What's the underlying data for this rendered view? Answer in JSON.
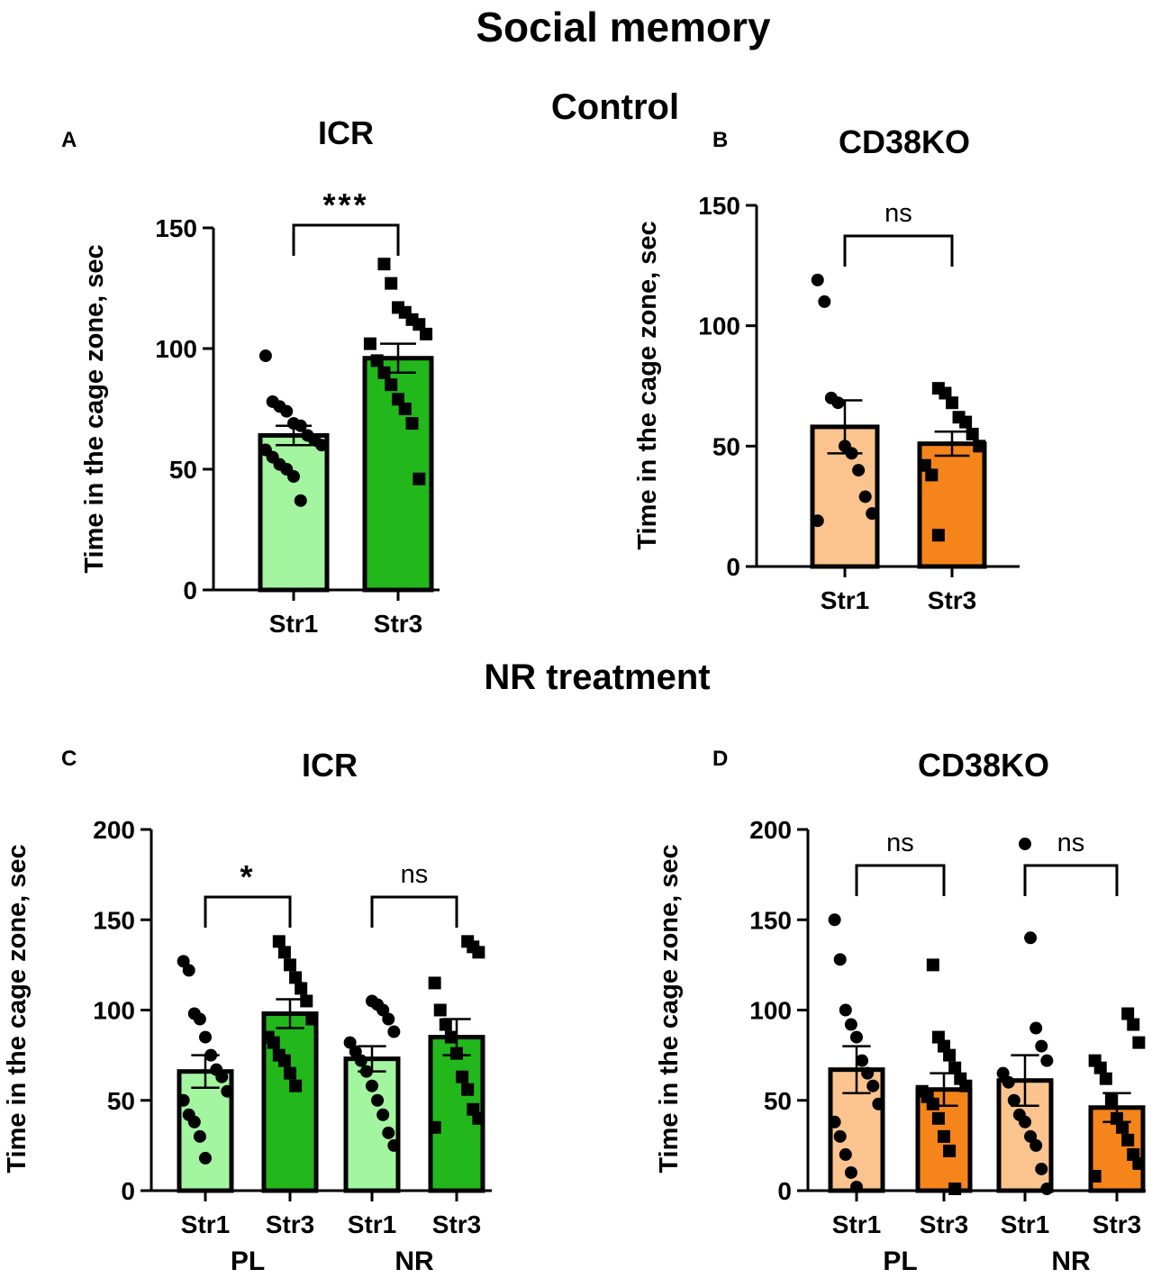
{
  "figure": {
    "title": "Social memory",
    "section_control": "Control",
    "section_nr": "NR treatment"
  },
  "colors": {
    "icr_light": "#a3f5a0",
    "icr_dark": "#22b81c",
    "ko_light": "#fbc48f",
    "ko_dark": "#f5841b",
    "ink": "#000000"
  },
  "chart_data": [
    {
      "panel": "A",
      "type": "bar",
      "title": "ICR",
      "ylabel": "Time in the cage zone, sec",
      "ylim": [
        0,
        150
      ],
      "yticks": [
        0,
        50,
        100,
        150
      ],
      "categories": [
        "Str1",
        "Str3"
      ],
      "groups": [],
      "values": [
        64,
        96
      ],
      "sem": [
        4,
        6
      ],
      "palette": [
        "icr_light",
        "icr_dark"
      ],
      "marker": [
        "circle",
        "square"
      ],
      "points": [
        [
          97,
          78,
          76,
          74,
          69,
          68,
          64,
          62,
          60,
          58,
          55,
          52,
          50,
          47,
          37
        ],
        [
          135,
          127,
          117,
          115,
          112,
          110,
          106,
          102,
          95,
          90,
          85,
          79,
          75,
          69,
          46
        ]
      ],
      "comparisons": [
        {
          "pair": [
            0,
            1
          ],
          "label": "***"
        }
      ]
    },
    {
      "panel": "B",
      "type": "bar",
      "title": "CD38KO",
      "ylabel": "Time in the cage zone, sec",
      "ylim": [
        0,
        150
      ],
      "yticks": [
        0,
        50,
        100,
        150
      ],
      "categories": [
        "Str1",
        "Str3"
      ],
      "groups": [],
      "values": [
        58,
        51
      ],
      "sem": [
        11,
        5
      ],
      "palette": [
        "ko_light",
        "ko_dark"
      ],
      "marker": [
        "circle",
        "square"
      ],
      "points": [
        [
          119,
          110,
          70,
          68,
          50,
          47,
          40,
          29,
          22,
          19
        ],
        [
          74,
          72,
          68,
          62,
          60,
          55,
          50,
          42,
          38,
          13
        ]
      ],
      "comparisons": [
        {
          "pair": [
            0,
            1
          ],
          "label": "ns"
        }
      ]
    },
    {
      "panel": "C",
      "type": "bar",
      "title": "ICR",
      "ylabel": "Time in the cage zone, sec",
      "ylim": [
        0,
        200
      ],
      "yticks": [
        0,
        50,
        100,
        150,
        200
      ],
      "categories": [
        "Str1",
        "Str3",
        "Str1",
        "Str3"
      ],
      "groups": [
        "PL",
        "NR"
      ],
      "values": [
        66,
        98,
        73,
        85
      ],
      "sem": [
        9,
        8,
        7,
        10
      ],
      "palette": [
        "icr_light",
        "icr_dark",
        "icr_light",
        "icr_dark"
      ],
      "marker": [
        "circle",
        "square",
        "circle",
        "square"
      ],
      "points": [
        [
          127,
          122,
          98,
          95,
          85,
          75,
          67,
          63,
          55,
          50,
          42,
          38,
          30,
          18
        ],
        [
          138,
          132,
          125,
          118,
          112,
          105,
          95,
          85,
          82,
          75,
          72,
          65,
          58
        ],
        [
          105,
          103,
          100,
          95,
          88,
          82,
          77,
          72,
          66,
          58,
          50,
          42,
          32,
          25
        ],
        [
          138,
          135,
          132,
          115,
          100,
          92,
          85,
          76,
          63,
          56,
          45,
          40,
          35
        ]
      ],
      "comparisons": [
        {
          "pair": [
            0,
            1
          ],
          "label": "*"
        },
        {
          "pair": [
            2,
            3
          ],
          "label": "ns"
        }
      ]
    },
    {
      "panel": "D",
      "type": "bar",
      "title": "CD38KO",
      "ylabel": "Time in the cage zone, sec",
      "ylim": [
        0,
        200
      ],
      "yticks": [
        0,
        50,
        100,
        150,
        200
      ],
      "categories": [
        "Str1",
        "Str3",
        "Str1",
        "Str3"
      ],
      "groups": [
        "PL",
        "NR"
      ],
      "values": [
        67,
        56,
        61,
        46
      ],
      "sem": [
        13,
        9,
        14,
        8
      ],
      "palette": [
        "ko_light",
        "ko_dark",
        "ko_light",
        "ko_dark"
      ],
      "marker": [
        "circle",
        "square",
        "circle",
        "square"
      ],
      "points": [
        [
          150,
          128,
          100,
          92,
          85,
          72,
          65,
          58,
          48,
          38,
          30,
          20,
          10,
          2
        ],
        [
          125,
          85,
          80,
          75,
          68,
          62,
          58,
          55,
          52,
          48,
          40,
          30,
          22,
          1
        ],
        [
          192,
          140,
          90,
          80,
          72,
          65,
          60,
          50,
          42,
          38,
          30,
          25,
          12,
          1
        ],
        [
          98,
          92,
          82,
          72,
          68,
          62,
          50,
          40,
          35,
          28,
          20,
          15,
          8
        ]
      ],
      "comparisons": [
        {
          "pair": [
            0,
            1
          ],
          "label": "ns"
        },
        {
          "pair": [
            2,
            3
          ],
          "label": "ns"
        }
      ]
    }
  ]
}
